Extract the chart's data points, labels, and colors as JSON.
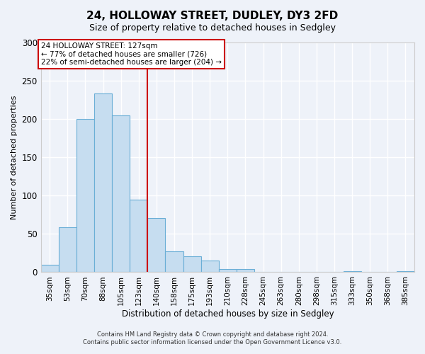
{
  "title": "24, HOLLOWAY STREET, DUDLEY, DY3 2FD",
  "subtitle": "Size of property relative to detached houses in Sedgley",
  "xlabel": "Distribution of detached houses by size in Sedgley",
  "ylabel": "Number of detached properties",
  "bar_labels": [
    "35sqm",
    "53sqm",
    "70sqm",
    "88sqm",
    "105sqm",
    "123sqm",
    "140sqm",
    "158sqm",
    "175sqm",
    "193sqm",
    "210sqm",
    "228sqm",
    "245sqm",
    "263sqm",
    "280sqm",
    "298sqm",
    "315sqm",
    "333sqm",
    "350sqm",
    "368sqm",
    "385sqm"
  ],
  "bar_values": [
    10,
    59,
    200,
    233,
    205,
    95,
    71,
    27,
    21,
    15,
    4,
    4,
    0,
    0,
    0,
    0,
    0,
    1,
    0,
    0,
    1
  ],
  "bar_color": "#c6ddf0",
  "bar_edge_color": "#6aaed6",
  "ylim": [
    0,
    300
  ],
  "yticks": [
    0,
    50,
    100,
    150,
    200,
    250,
    300
  ],
  "property_line_x": 5.5,
  "property_line_color": "#cc0000",
  "annotation_title": "24 HOLLOWAY STREET: 127sqm",
  "annotation_line1": "← 77% of detached houses are smaller (726)",
  "annotation_line2": "22% of semi-detached houses are larger (204) →",
  "annotation_box_facecolor": "#ffffff",
  "annotation_box_edgecolor": "#cc0000",
  "footer_line1": "Contains HM Land Registry data © Crown copyright and database right 2024.",
  "footer_line2": "Contains public sector information licensed under the Open Government Licence v3.0.",
  "background_color": "#eef2f9",
  "plot_background_color": "#eef2f9",
  "grid_color": "#ffffff",
  "title_fontsize": 11,
  "subtitle_fontsize": 9
}
